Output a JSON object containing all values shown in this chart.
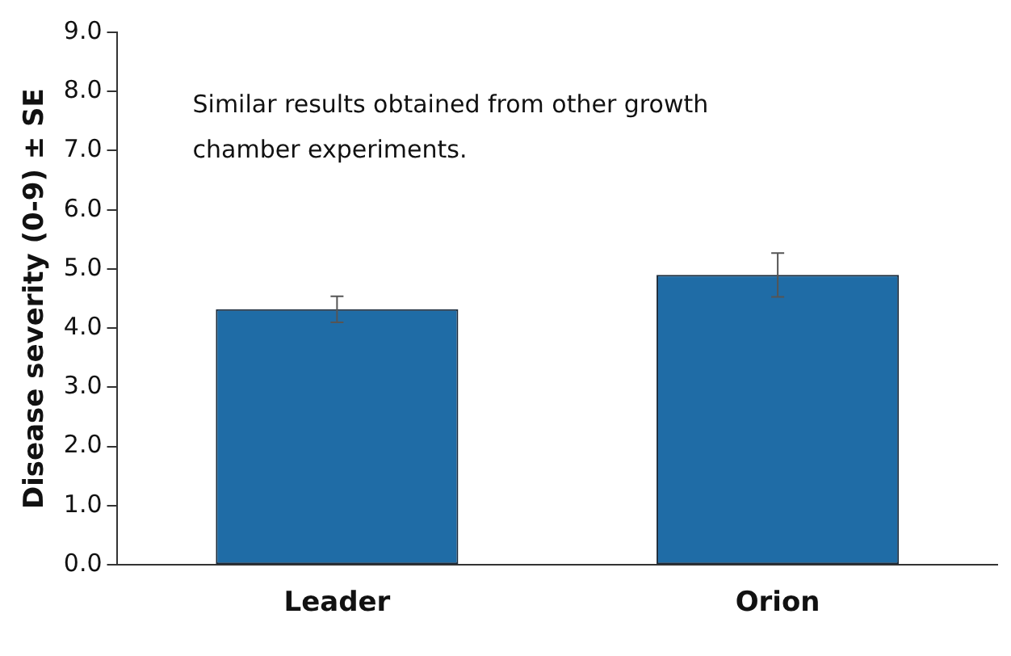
{
  "chart_data": {
    "type": "bar",
    "ylabel": "Disease severity (0-9) ± SE",
    "categories": [
      "Leader",
      "Orion"
    ],
    "values": [
      4.32,
      4.9
    ],
    "errors": [
      0.22,
      0.37
    ],
    "color": "#1f6ca6",
    "ylim": [
      0,
      9
    ],
    "yticks": [
      {
        "value": 0,
        "label": "0.0"
      },
      {
        "value": 1,
        "label": "1.0"
      },
      {
        "value": 2,
        "label": "2.0"
      },
      {
        "value": 3,
        "label": "3.0"
      },
      {
        "value": 4,
        "label": "4.0"
      },
      {
        "value": 5,
        "label": "5.0"
      },
      {
        "value": 6,
        "label": "6.0"
      },
      {
        "value": 7,
        "label": "7.0"
      },
      {
        "value": 8,
        "label": "8.0"
      },
      {
        "value": 9,
        "label": "9.0"
      }
    ],
    "grid": false,
    "legend": false,
    "annotations": [
      "Similar results obtained from other growth chamber experiments."
    ]
  }
}
